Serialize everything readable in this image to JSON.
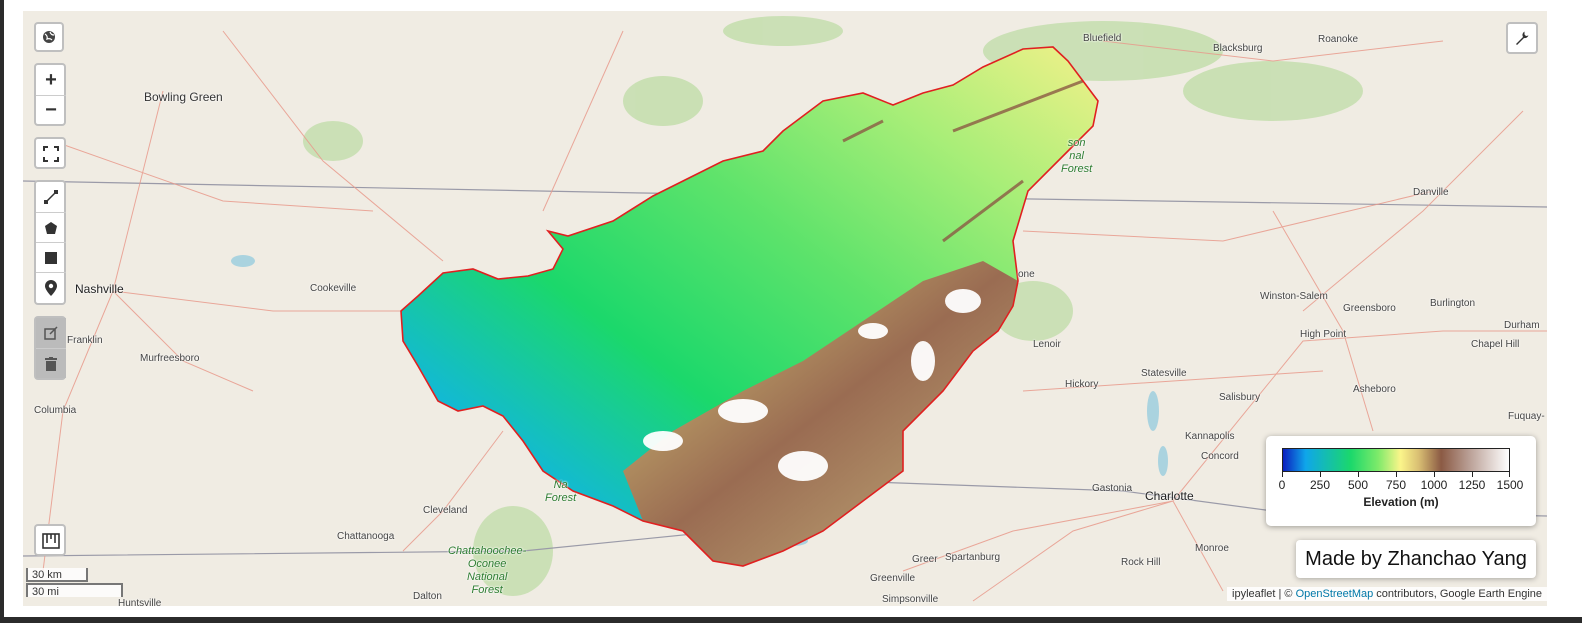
{
  "controls": {
    "zoom_in": "+",
    "zoom_out": "−",
    "icons": [
      "globe-icon",
      "fullscreen-icon",
      "polyline-icon",
      "polygon-icon",
      "rectangle-icon",
      "marker-icon",
      "edit-icon",
      "trash-icon",
      "ruler-icon",
      "wrench-icon"
    ]
  },
  "places": {
    "bowling_green": "Bowling Green",
    "nashville": "Nashville",
    "cookeville": "Cookeville",
    "franklin": "Franklin",
    "murfreesboro": "Murfreesboro",
    "columbia": "Columbia",
    "cleveland": "Cleveland",
    "chattanooga": "Chattanooga",
    "dalton": "Dalton",
    "huntsville": "Huntsville",
    "bluefield": "Bluefield",
    "blacksburg": "Blacksburg",
    "roanoke": "Roanoke",
    "danville": "Danville",
    "winston_salem": "Winston-Salem",
    "greensboro": "Greensboro",
    "burlington": "Burlington",
    "durham": "Durham",
    "chapel_hill": "Chapel Hill",
    "high_point": "High Point",
    "asheboro": "Asheboro",
    "fuquay": "Fuquay-",
    "lenoir": "Lenoir",
    "hickory": "Hickory",
    "statesville": "Statesville",
    "salisbury": "Salisbury",
    "kannapolis": "Kannapolis",
    "concord": "Concord",
    "gastonia": "Gastonia",
    "charlotte": "Charlotte",
    "monroe": "Monroe",
    "rock_hill": "Rock Hill",
    "spartanburg": "Spartanburg",
    "greer": "Greer",
    "greenville": "Greenville",
    "simpsonville": "Simpsonville",
    "boone_partial": "one",
    "jefferson_forest": "son\nnal\nForest",
    "cherokee_forest": "Na\nForest",
    "chattahoochee_forest": "Chattahoochee-\nOconee\nNational\nForest"
  },
  "scale": {
    "km": "30 km",
    "mi": "30 mi"
  },
  "legend": {
    "ticks": [
      "0",
      "250",
      "500",
      "750",
      "1000",
      "1250",
      "1500"
    ],
    "tick_values": [
      0,
      250,
      500,
      750,
      1000,
      1250,
      1500
    ],
    "range": [
      0,
      1500
    ],
    "title": "Elevation (m)",
    "palette": [
      "#0b1fbf",
      "#0fa6ea",
      "#1bd86b",
      "#7dea6a",
      "#fbf58a",
      "#d9bf73",
      "#8b5a44",
      "#b89d93",
      "#ffffff"
    ]
  },
  "credit": "Made by Zhanchao Yang",
  "attribution": {
    "prefix": "ipyleaflet | © ",
    "link": "OpenStreetMap",
    "suffix": " contributors, Google Earth Engine"
  },
  "colors": {
    "boundary": "#e02020",
    "road": "#e89a8c",
    "state_line": "#9a9aa8",
    "forest": "#b7d6a2",
    "water": "#aad3df"
  }
}
